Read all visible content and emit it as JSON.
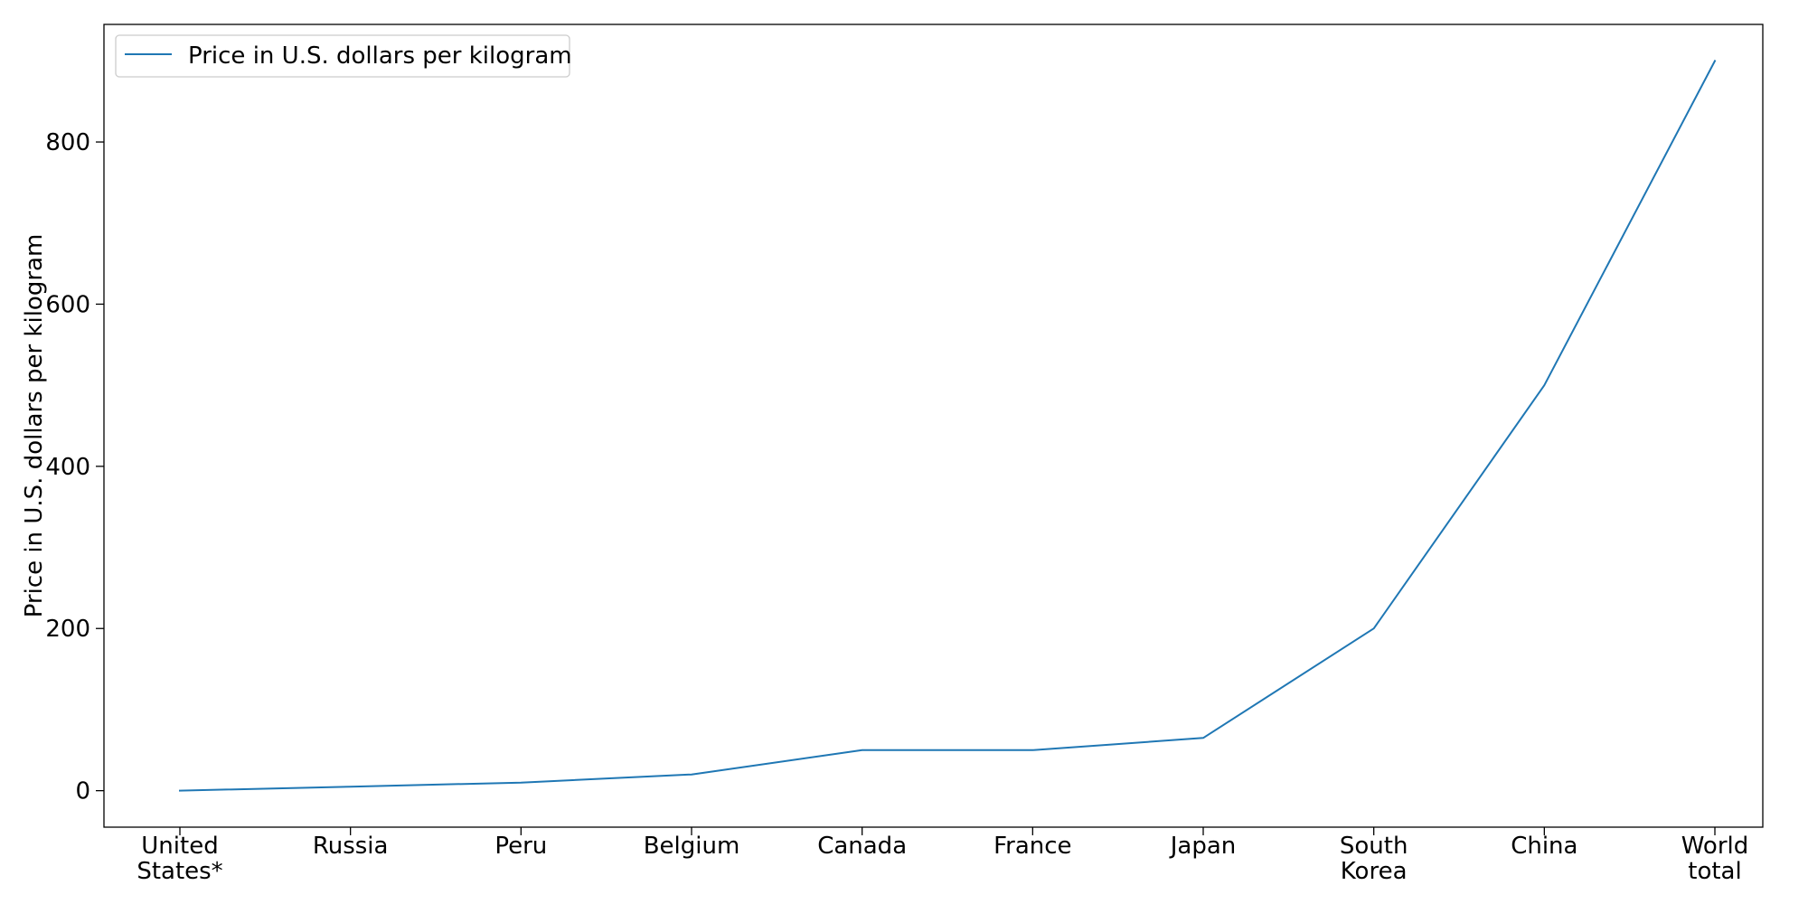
{
  "chart_data": {
    "type": "line",
    "categories": [
      "United States*",
      "Russia",
      "Peru",
      "Belgium",
      "Canada",
      "France",
      "Japan",
      "South Korea",
      "China",
      "World total"
    ],
    "category_lines": [
      [
        "United",
        "States*"
      ],
      [
        "Russia"
      ],
      [
        "Peru"
      ],
      [
        "Belgium"
      ],
      [
        "Canada"
      ],
      [
        "France"
      ],
      [
        "Japan"
      ],
      [
        "South",
        "Korea"
      ],
      [
        "China"
      ],
      [
        "World",
        "total"
      ]
    ],
    "series": [
      {
        "name": "Price in U.S. dollars per kilogram",
        "values": [
          0,
          5,
          10,
          20,
          50,
          50,
          65,
          200,
          500,
          900
        ],
        "color": "#1f77b4"
      }
    ],
    "title": "",
    "xlabel": "",
    "ylabel": "Price in U.S. dollars per kilogram",
    "ylim": [
      -45,
      945
    ],
    "yticks": [
      0,
      200,
      400,
      600,
      800
    ],
    "grid": false,
    "legend_position": "upper-left"
  }
}
